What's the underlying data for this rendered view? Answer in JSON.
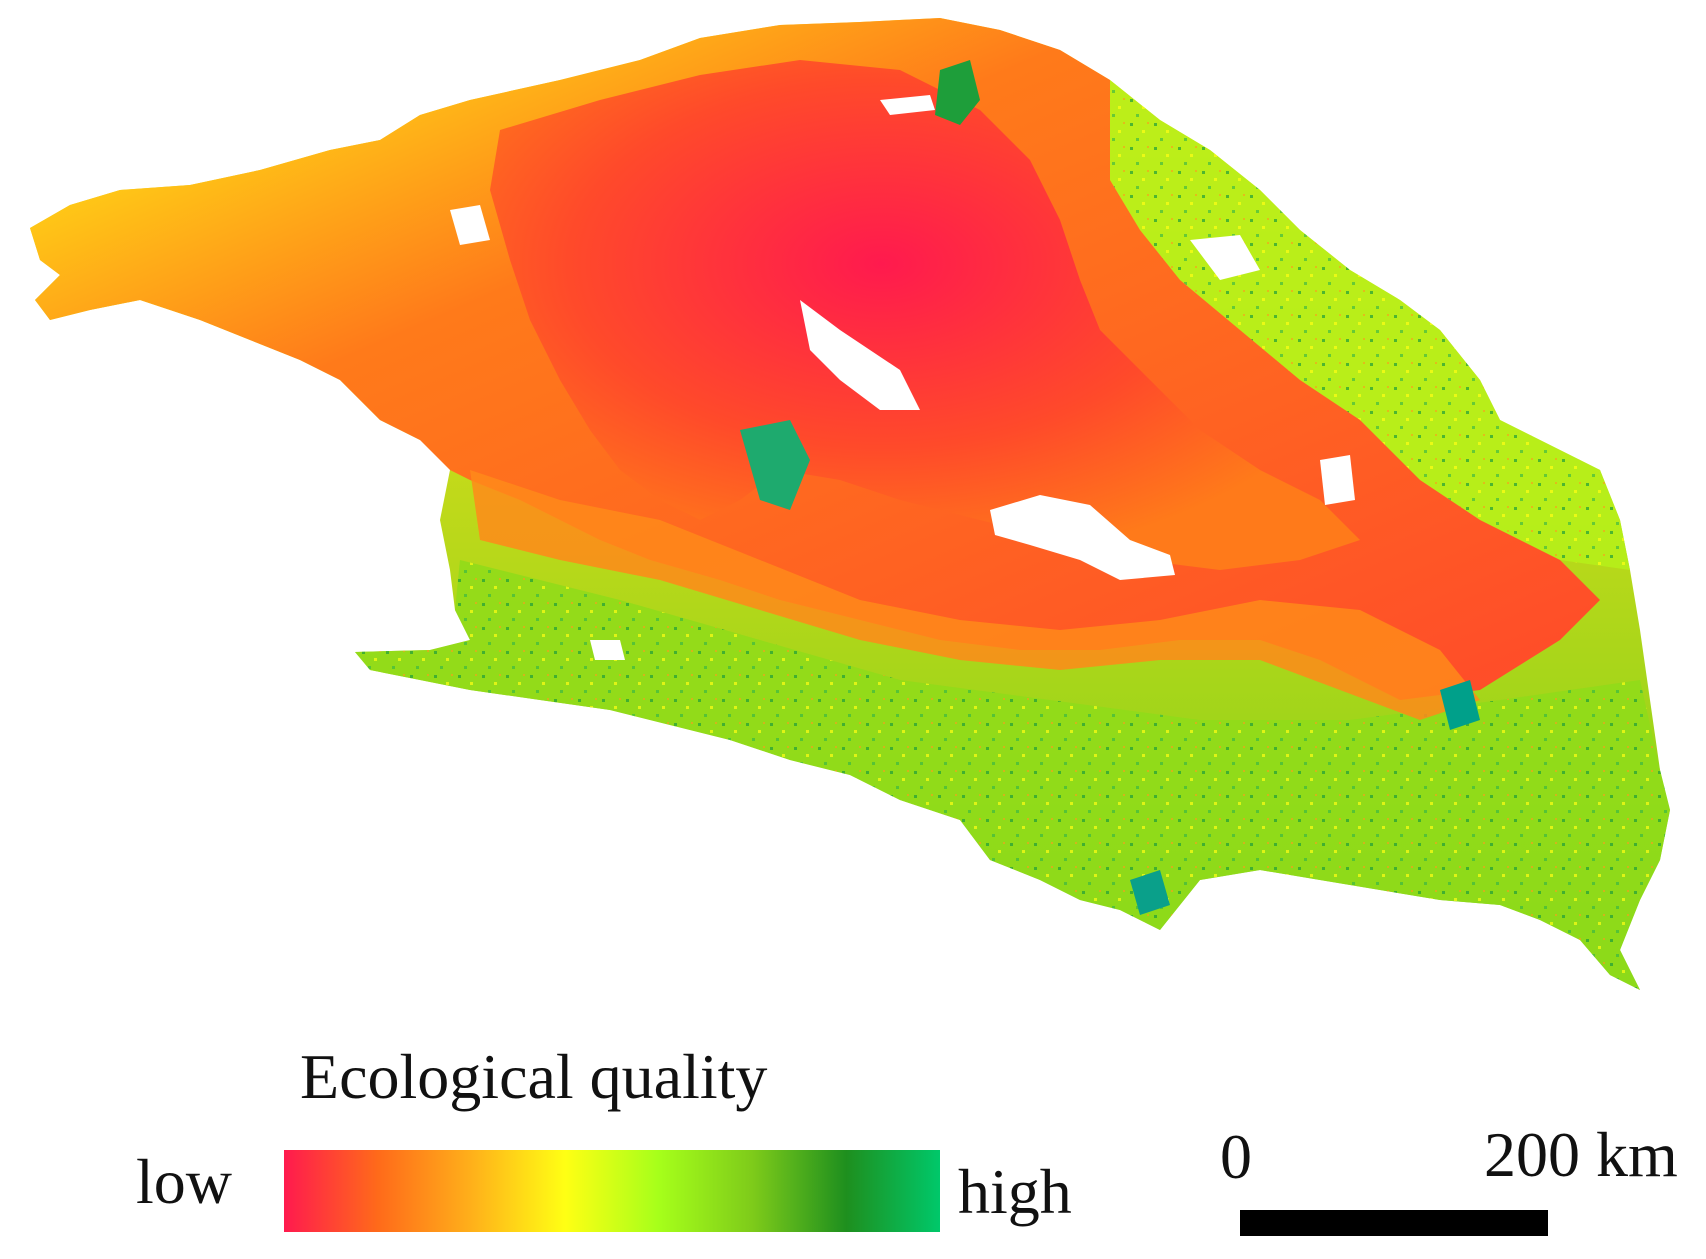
{
  "legend": {
    "title": "Ecological quality",
    "low_label": "low",
    "high_label": "high",
    "color_stops": [
      "#ff1a4e",
      "#ff6a1a",
      "#ffb01a",
      "#ffff14",
      "#a6ff1a",
      "#7ecb1a",
      "#1e8f1e",
      "#00c86a"
    ]
  },
  "scale_bar": {
    "start_label": "0",
    "end_label": "200 km"
  },
  "map": {
    "palette": {
      "low": "#ff1a4e",
      "mid_low": "#ff5a1a",
      "mid": "#ff9a1a",
      "mid_high": "#ffff14",
      "high": "#9cf01a",
      "very_high": "#1e9e3a",
      "teal": "#00a08a"
    }
  }
}
